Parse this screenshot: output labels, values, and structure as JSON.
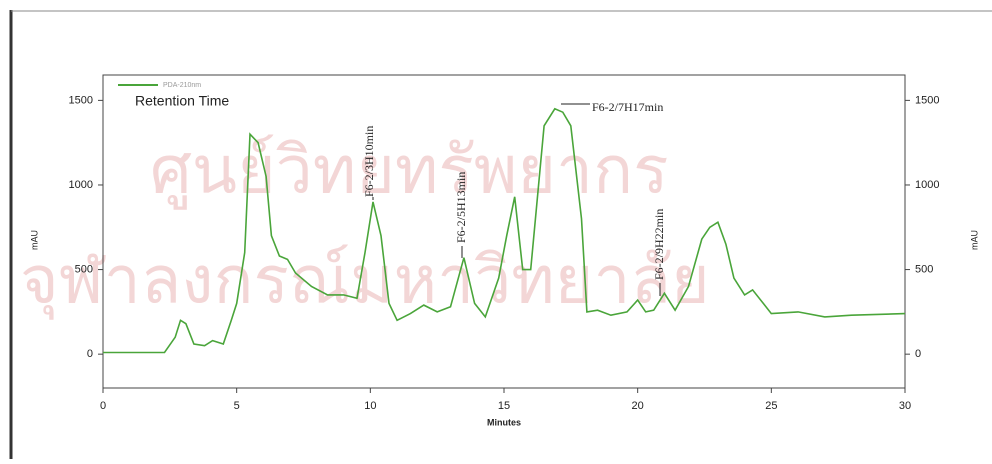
{
  "chart_data": {
    "type": "line",
    "annotation": "Retention Time",
    "x_label": "Minutes",
    "y_label": "mAU",
    "y2_label": "mAU",
    "peak_labels": [
      "F6-2/3H10min",
      "F6-2/5H13min",
      "F6-2/7H17min",
      "F6-2/9H22min"
    ],
    "watermark": [
      "ศูนย์วิทยทรัพยากร",
      "จุฬาลงกรณ์มหาวิทยาลัย"
    ],
    "x": [
      0,
      2.3,
      2.7,
      2.9,
      3.1,
      3.4,
      3.8,
      4.1,
      4.5,
      4.8,
      5.0,
      5.3,
      5.5,
      5.8,
      6.1,
      6.3,
      6.6,
      6.9,
      7.2,
      7.8,
      8.4,
      9.0,
      9.5,
      9.8,
      10.1,
      10.4,
      10.7,
      11.0,
      11.5,
      12.0,
      12.5,
      13.0,
      13.5,
      13.9,
      14.3,
      14.8,
      15.1,
      15.4,
      15.7,
      16.0,
      16.5,
      16.9,
      17.2,
      17.5,
      17.9,
      18.1,
      18.5,
      19.0,
      19.6,
      20.0,
      20.3,
      20.6,
      21.0,
      21.4,
      21.9,
      22.4,
      22.7,
      23.0,
      23.3,
      23.6,
      24.0,
      24.3,
      24.7,
      25.0,
      26.0,
      27.0,
      28.0,
      30
    ],
    "series": [
      {
        "name": "PDA-210nm",
        "color": "#4aa53a",
        "values": [
          10,
          10,
          100,
          200,
          180,
          60,
          50,
          80,
          60,
          200,
          300,
          600,
          1300,
          1250,
          1050,
          700,
          580,
          560,
          480,
          400,
          350,
          350,
          330,
          600,
          900,
          700,
          300,
          200,
          240,
          290,
          250,
          280,
          570,
          300,
          220,
          450,
          700,
          930,
          500,
          500,
          1350,
          1450,
          1430,
          1350,
          800,
          250,
          260,
          230,
          250,
          320,
          250,
          260,
          360,
          260,
          400,
          680,
          750,
          780,
          650,
          450,
          350,
          380,
          300,
          240,
          250,
          220,
          230,
          240
        ]
      }
    ],
    "xlim": [
      0,
      30
    ],
    "xticks": [
      0,
      5,
      10,
      15,
      20,
      25,
      30
    ],
    "ylim": [
      -200,
      1650
    ],
    "yticks": [
      0,
      500,
      1000,
      1500
    ],
    "y2lim": [
      -200,
      1650
    ],
    "y2ticks": [
      0,
      500,
      1000,
      1500
    ]
  }
}
